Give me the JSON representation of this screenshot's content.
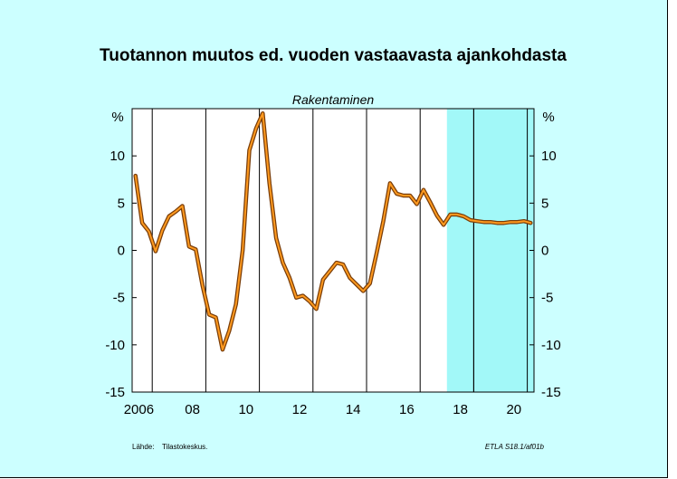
{
  "chart_data": {
    "type": "line",
    "title": "Tuotannon muutos ed. vuoden vastaavasta ajankohdasta",
    "subtitle": "Rakentaminen",
    "ylabel_left": "%",
    "ylabel_right": "%",
    "ylim": [
      -15,
      15
    ],
    "yticks": [
      10,
      5,
      0,
      -5,
      -10,
      -15
    ],
    "xlim": [
      2005.75,
      2020.75
    ],
    "xticks": [
      {
        "value": 2006,
        "label": "2006"
      },
      {
        "value": 2008,
        "label": "08"
      },
      {
        "value": 2010,
        "label": "10"
      },
      {
        "value": 2012,
        "label": "12"
      },
      {
        "value": 2014,
        "label": "14"
      },
      {
        "value": 2016,
        "label": "16"
      },
      {
        "value": 2018,
        "label": "18"
      },
      {
        "value": 2020,
        "label": "20"
      }
    ],
    "forecast_start": 2017.5,
    "forecast_year_divider": 2018.5,
    "grid": "vertical",
    "series": [
      {
        "x": [
          2005.875,
          2006.125,
          2006.375,
          2006.625,
          2006.875,
          2007.125,
          2007.375,
          2007.625,
          2007.875,
          2008.125,
          2008.375,
          2008.625,
          2008.875,
          2009.125,
          2009.375,
          2009.625,
          2009.875,
          2010.125,
          2010.375,
          2010.625,
          2010.875,
          2011.125,
          2011.375,
          2011.625,
          2011.875,
          2012.125,
          2012.375,
          2012.625,
          2012.875,
          2013.125,
          2013.375,
          2013.625,
          2013.875,
          2014.125,
          2014.375,
          2014.625,
          2014.875,
          2015.125,
          2015.375,
          2015.625,
          2015.875,
          2016.125,
          2016.375,
          2016.625,
          2016.875,
          2017.125,
          2017.375,
          2017.625,
          2017.875,
          2018.125,
          2018.375,
          2018.625,
          2018.875,
          2019.125,
          2019.375,
          2019.625,
          2019.875,
          2020.125,
          2020.375,
          2020.625
        ],
        "values": [
          7.9,
          2.9,
          2.0,
          -0.1,
          2.1,
          3.6,
          4.1,
          4.7,
          0.4,
          0.1,
          -3.7,
          -6.8,
          -7.1,
          -10.5,
          -8.5,
          -5.7,
          0.0,
          10.6,
          12.9,
          14.5,
          7.1,
          1.3,
          -1.3,
          -2.9,
          -5.0,
          -4.8,
          -5.4,
          -6.2,
          -3.1,
          -2.2,
          -1.3,
          -1.5,
          -2.9,
          -3.6,
          -4.3,
          -3.5,
          -0.3,
          3.1,
          7.1,
          6.0,
          5.8,
          5.8,
          4.9,
          6.4,
          5.1,
          3.7,
          2.7,
          3.8,
          3.8,
          3.6,
          3.2,
          3.1,
          3.0,
          3.0,
          2.9,
          2.9,
          3.0,
          3.0,
          3.1,
          2.9
        ]
      }
    ]
  },
  "footer": {
    "source_label": "Lähde:",
    "source_value": "Tilastokeskus.",
    "code": "ETLA S18.1/af01b"
  },
  "colors": {
    "background": "#ccffff",
    "plot_area": "#ffffff",
    "forecast": "#a2f8f8",
    "line_outer": "#7a3d08",
    "line_inner": "#ff9a1f",
    "grid": "#000000"
  }
}
